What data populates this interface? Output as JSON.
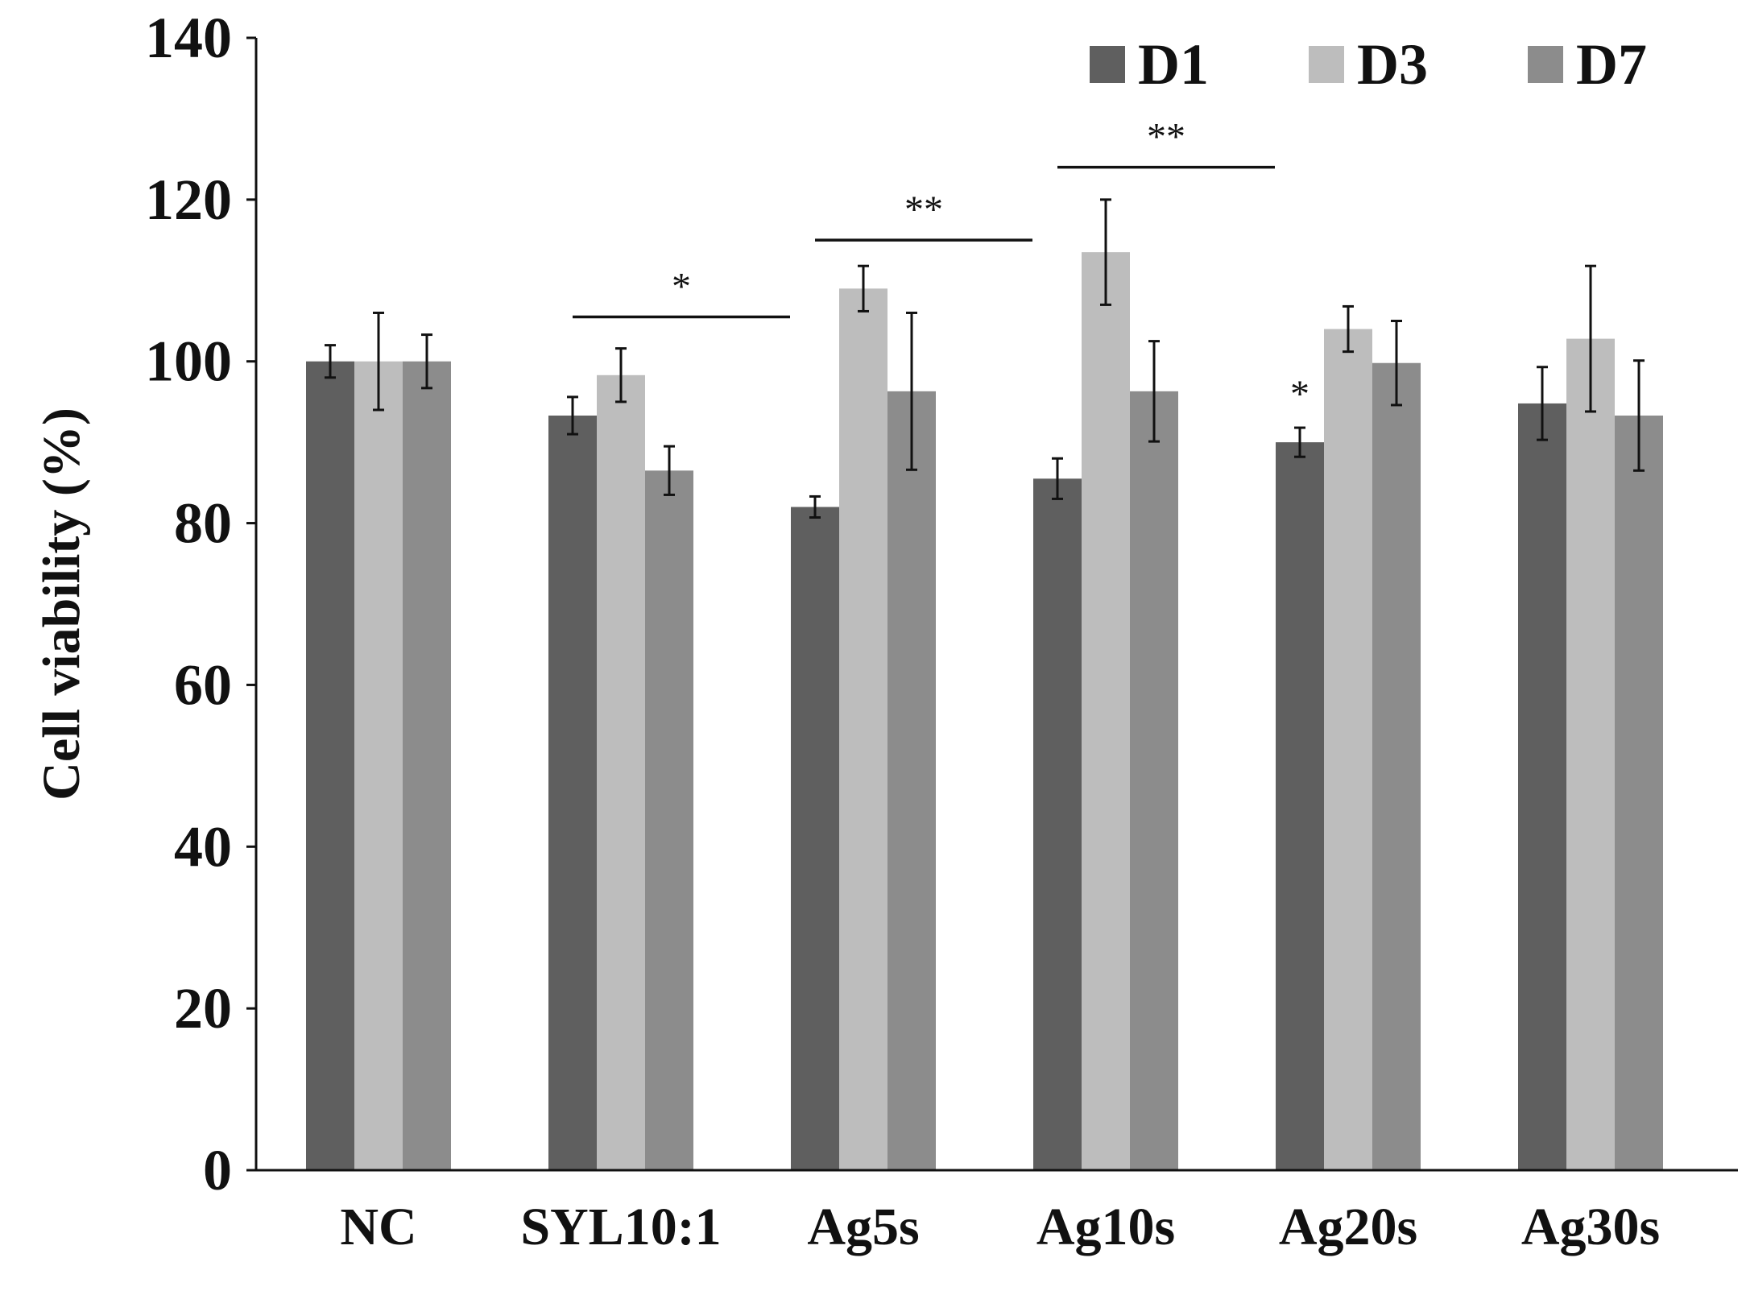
{
  "chart_data": {
    "type": "bar",
    "title": "",
    "xlabel": "",
    "ylabel": "Cell viability (%)",
    "ylim": [
      0,
      140
    ],
    "yticks": [
      0,
      20,
      40,
      60,
      80,
      100,
      120,
      140
    ],
    "ytick_labels": [
      "0",
      "20",
      "40",
      "60",
      "80",
      "100",
      "120",
      "140"
    ],
    "grid": false,
    "legend_position": "top-right",
    "categories": [
      "NC",
      "SYL10:1",
      "Ag5s",
      "Ag10s",
      "Ag20s",
      "Ag30s"
    ],
    "series": [
      {
        "name": "D1",
        "color": "#5f5f5f",
        "values": [
          100,
          93.3,
          82.0,
          85.5,
          90.0,
          94.8
        ],
        "errors": [
          2.0,
          2.3,
          1.3,
          2.5,
          1.8,
          4.5
        ]
      },
      {
        "name": "D3",
        "color": "#bdbdbd",
        "values": [
          100,
          98.3,
          109.0,
          113.5,
          104.0,
          102.8
        ],
        "errors": [
          6.0,
          3.3,
          2.8,
          6.5,
          2.8,
          9.0
        ]
      },
      {
        "name": "D7",
        "color": "#8c8c8c",
        "values": [
          100,
          86.5,
          96.3,
          96.3,
          99.8,
          93.3
        ],
        "errors": [
          3.3,
          3.0,
          9.7,
          6.2,
          5.2,
          6.8
        ]
      }
    ],
    "annotations": [
      {
        "type": "bracket",
        "text": "*",
        "from_category": "SYL10:1",
        "y": 105.5
      },
      {
        "type": "bracket",
        "text": "**",
        "from_category": "Ag5s",
        "y": 115.0
      },
      {
        "type": "bracket",
        "text": "**",
        "from_category": "Ag10s",
        "y": 124.0
      },
      {
        "type": "point",
        "text": "*",
        "category": "Ag20s",
        "series": "D1"
      }
    ]
  }
}
